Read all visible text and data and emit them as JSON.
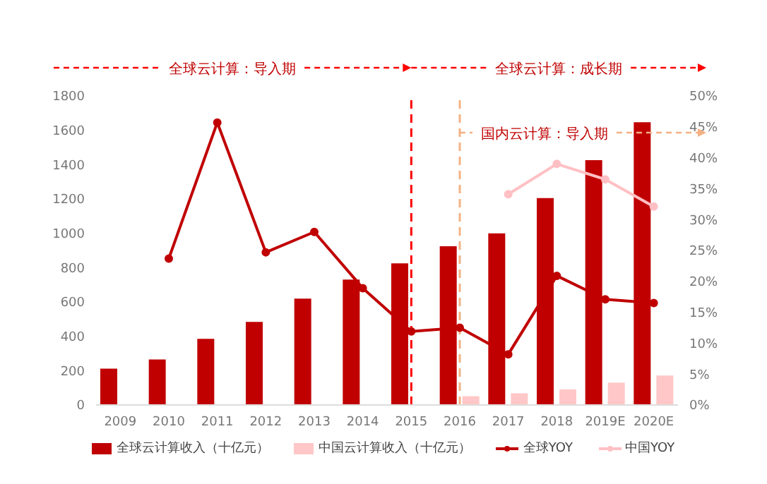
{
  "chart_data": {
    "type": "bar",
    "categories": [
      "2009",
      "2010",
      "2011",
      "2012",
      "2013",
      "2014",
      "2015",
      "2016",
      "2017",
      "2018",
      "2019E",
      "2020E"
    ],
    "series": [
      {
        "name": "全球云计算收入（十亿元）",
        "color": "#c00000",
        "values": [
          212,
          265,
          385,
          484,
          620,
          730,
          825,
          925,
          1000,
          1205,
          1426,
          1647
        ]
      },
      {
        "name": "中国云计算收入（十亿元）",
        "color": "#ffc7c7",
        "values": [
          null,
          null,
          null,
          null,
          null,
          null,
          null,
          51,
          68,
          91,
          130,
          172
        ]
      },
      {
        "name": "全球YOY",
        "type": "line",
        "axis": "y2",
        "color": "#c00000",
        "values": [
          null,
          23.7,
          45.7,
          24.7,
          28.0,
          18.9,
          11.9,
          12.5,
          8.2,
          20.9,
          17.1,
          16.5
        ]
      },
      {
        "name": "中国YOY",
        "type": "line",
        "axis": "y2",
        "color": "#ffc0c4",
        "values": [
          null,
          null,
          null,
          null,
          null,
          null,
          null,
          null,
          34.1,
          39.0,
          36.5,
          32.1
        ]
      }
    ],
    "ylim": [
      0,
      1800
    ],
    "yticks": [
      0,
      200,
      400,
      600,
      800,
      1000,
      1200,
      1400,
      1600,
      1800
    ],
    "y2lim": [
      0,
      50
    ],
    "y2ticks": [
      {
        "value": 0,
        "label": "0%"
      },
      {
        "value": 5,
        "label": "5%"
      },
      {
        "value": 10,
        "label": "10%"
      },
      {
        "value": 15,
        "label": "15%"
      },
      {
        "value": 20,
        "label": "20%"
      },
      {
        "value": 25,
        "label": "25%"
      },
      {
        "value": 30,
        "label": "30%"
      },
      {
        "value": 35,
        "label": "35%"
      },
      {
        "value": 40,
        "label": "40%"
      },
      {
        "value": 45,
        "label": "45%"
      },
      {
        "value": 50,
        "label": "50%"
      }
    ],
    "ref_lines": [
      {
        "axis": "x",
        "value": "2015",
        "color": "#ff0000",
        "line_style": "dashed"
      },
      {
        "axis": "x",
        "value": "2016",
        "color": "#f4b183",
        "line_style": "dashed"
      }
    ],
    "annotations": [
      "全球云计算：导入期",
      "全球云计算：成长期",
      "国内云计算：导入期"
    ],
    "marker": "circle",
    "grid": false,
    "legend": "bottom"
  }
}
